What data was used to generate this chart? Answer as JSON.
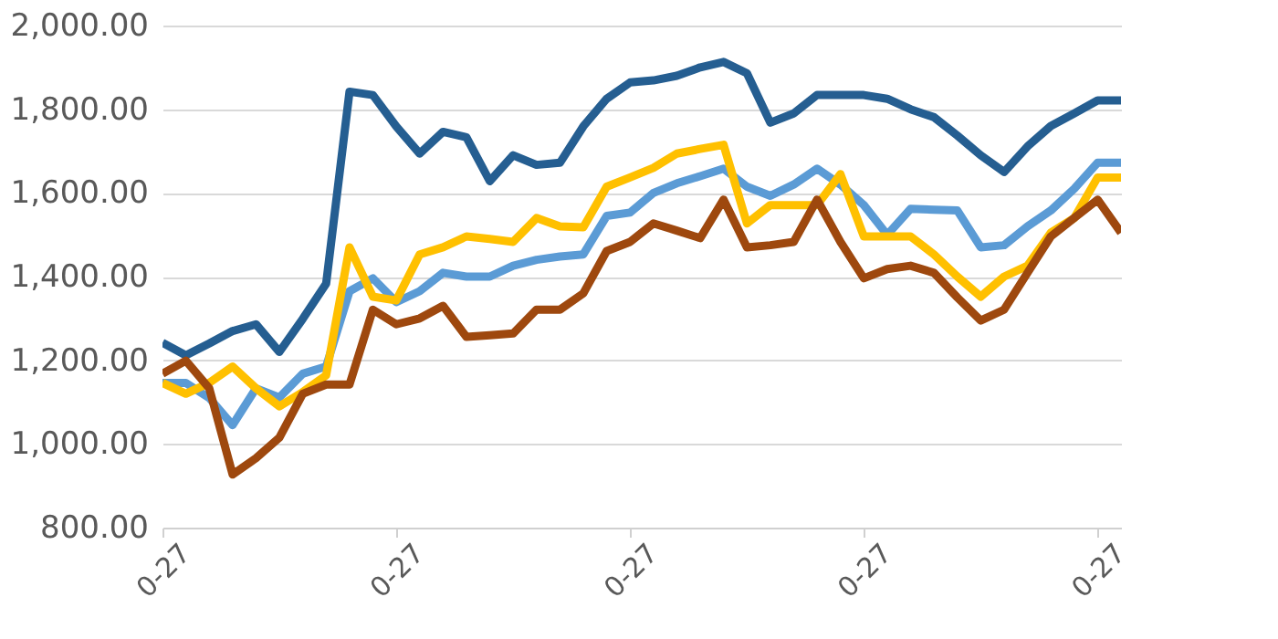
{
  "chart_data": {
    "type": "line",
    "categories": [
      "0-27",
      null,
      null,
      null,
      null,
      null,
      null,
      null,
      null,
      null,
      "0-27",
      null,
      null,
      null,
      null,
      null,
      null,
      null,
      null,
      null,
      "0-27",
      null,
      null,
      null,
      null,
      null,
      null,
      null,
      null,
      null,
      "0-27",
      null,
      null,
      null,
      null,
      null,
      null,
      null,
      null,
      null,
      "0-27",
      null
    ],
    "ylim": [
      800,
      2000
    ],
    "yticks": [
      {
        "value": 800,
        "label": "800.00"
      },
      {
        "value": 1000,
        "label": "1,000.00"
      },
      {
        "value": 1200,
        "label": "1,200.00"
      },
      {
        "value": 1400,
        "label": "1,400.00"
      },
      {
        "value": 1600,
        "label": "1,600.00"
      },
      {
        "value": 1800,
        "label": "1,800.00"
      },
      {
        "value": 2000,
        "label": "2,000.00"
      }
    ],
    "grid": "y",
    "legend": false,
    "line_style": "solid",
    "marker": "none",
    "series": [
      {
        "color": "#255e91",
        "values": [
          1242,
          1212,
          1240,
          1270,
          1286,
          1220,
          1299,
          1383,
          1842,
          1834,
          1759,
          1694,
          1746,
          1733,
          1628,
          1690,
          1667,
          1672,
          1759,
          1825,
          1864,
          1869,
          1880,
          1900,
          1913,
          1886,
          1768,
          1790,
          1834,
          1834,
          1834,
          1825,
          1800,
          1781,
          1737,
          1690,
          1650,
          1711,
          1760,
          1790,
          1821,
          1821
        ]
      },
      {
        "color": "#5b9bd5",
        "values": [
          1146,
          1146,
          1110,
          1045,
          1133,
          1111,
          1168,
          1185,
          1365,
          1396,
          1339,
          1365,
          1409,
          1400,
          1400,
          1426,
          1440,
          1448,
          1453,
          1545,
          1553,
          1600,
          1623,
          1640,
          1658,
          1615,
          1593,
          1620,
          1658,
          1620,
          1571,
          1500,
          1562,
          1560,
          1558,
          1470,
          1475,
          1520,
          1558,
          1610,
          1672,
          1672
        ]
      },
      {
        "color": "#ffc000",
        "values": [
          1146,
          1120,
          1146,
          1185,
          1133,
          1090,
          1124,
          1164,
          1470,
          1352,
          1343,
          1453,
          1470,
          1496,
          1490,
          1483,
          1540,
          1520,
          1518,
          1615,
          1637,
          1660,
          1694,
          1705,
          1715,
          1527,
          1571,
          1571,
          1571,
          1645,
          1496,
          1496,
          1496,
          1453,
          1400,
          1352,
          1400,
          1426,
          1505,
          1540,
          1637,
          1637
        ]
      },
      {
        "color": "#9e480e",
        "values": [
          1168,
          1199,
          1133,
          927,
          966,
          1015,
          1120,
          1142,
          1142,
          1321,
          1286,
          1300,
          1330,
          1256,
          1260,
          1264,
          1321,
          1321,
          1360,
          1461,
          1483,
          1527,
          1510,
          1492,
          1584,
          1470,
          1475,
          1483,
          1584,
          1483,
          1396,
          1418,
          1426,
          1409,
          1350,
          1295,
          1321,
          1409,
          1496,
          1540,
          1584,
          1505
        ]
      }
    ]
  }
}
